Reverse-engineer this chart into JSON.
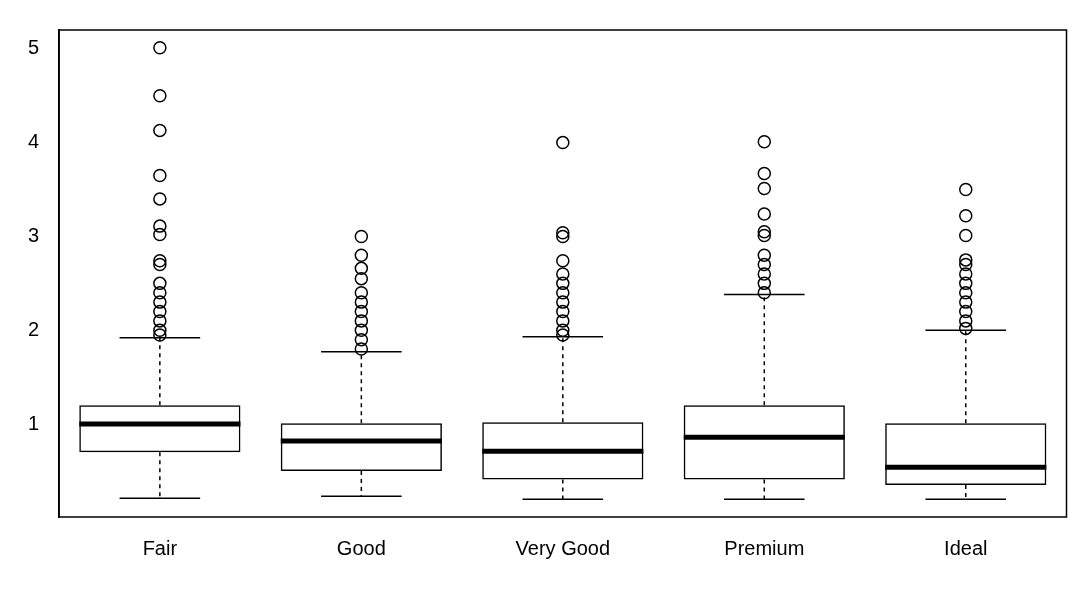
{
  "chart_data": {
    "type": "box",
    "categories": [
      "Fair",
      "Good",
      "Very Good",
      "Premium",
      "Ideal"
    ],
    "boxes": [
      {
        "low": 0.21,
        "q1": 0.7,
        "median": 1.0,
        "q3": 1.2,
        "high": 1.92,
        "outliers": [
          5.01,
          4.5,
          4.13,
          3.65,
          3.4,
          3.11,
          3.02,
          2.74,
          2.7,
          2.5,
          2.4,
          2.3,
          2.2,
          2.1,
          2.0,
          1.95
        ]
      },
      {
        "low": 0.23,
        "q1": 0.5,
        "median": 0.82,
        "q3": 1.01,
        "high": 1.77,
        "outliers": [
          3.0,
          2.8,
          2.66,
          2.55,
          2.4,
          2.3,
          2.2,
          2.1,
          2.0,
          1.9,
          1.8
        ]
      },
      {
        "low": 0.2,
        "q1": 0.41,
        "median": 0.71,
        "q3": 1.02,
        "high": 1.93,
        "outliers": [
          4.0,
          3.04,
          3.0,
          2.74,
          2.6,
          2.5,
          2.4,
          2.3,
          2.2,
          2.1,
          2.0,
          1.95
        ]
      },
      {
        "low": 0.2,
        "q1": 0.41,
        "median": 0.86,
        "q3": 1.2,
        "high": 2.38,
        "outliers": [
          4.01,
          3.67,
          3.51,
          3.24,
          3.05,
          3.01,
          2.8,
          2.7,
          2.6,
          2.5,
          2.4
        ]
      },
      {
        "low": 0.2,
        "q1": 0.35,
        "median": 0.54,
        "q3": 1.01,
        "high": 2.0,
        "outliers": [
          3.5,
          3.22,
          3.01,
          2.75,
          2.7,
          2.6,
          2.5,
          2.4,
          2.3,
          2.2,
          2.1,
          2.02
        ]
      }
    ],
    "color": "#000000",
    "ylim": [
      0.01,
      5.2
    ],
    "yticks": [
      1,
      2,
      3,
      4,
      5
    ],
    "grid": false,
    "legend": false,
    "marker": "circle"
  }
}
